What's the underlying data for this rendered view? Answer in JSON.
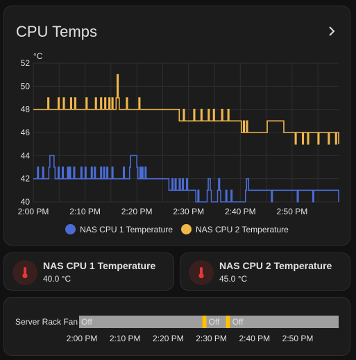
{
  "card": {
    "title": "CPU Temps",
    "unit": "°C"
  },
  "legend": [
    {
      "label": "NAS CPU 1 Temperature",
      "color": "#4a6cd4"
    },
    {
      "label": "NAS CPU 2 Temperature",
      "color": "#f0b74a"
    }
  ],
  "chart_data": {
    "type": "line",
    "xlabel": "",
    "ylabel": "°C",
    "ylim": [
      40,
      52
    ],
    "yticks": [
      40,
      42,
      44,
      46,
      48,
      50,
      52
    ],
    "xlim_minutes": [
      0,
      59
    ],
    "xticks": [
      {
        "t": 0,
        "label": "2:00 PM"
      },
      {
        "t": 10,
        "label": "2:10 PM"
      },
      {
        "t": 20,
        "label": "2:20 PM"
      },
      {
        "t": 30,
        "label": "2:30 PM"
      },
      {
        "t": 40,
        "label": "2:40 PM"
      },
      {
        "t": 50,
        "label": "2:50 PM"
      }
    ],
    "grid": true,
    "series": [
      {
        "name": "NAS CPU 1 Temperature",
        "color": "#4a6cd4",
        "x": [
          0,
          0.8,
          1,
          1.8,
          2,
          3,
          3.2,
          4,
          4.2,
          4.8,
          5,
          5.6,
          5.8,
          6.6,
          6.8,
          7,
          7.2,
          7.8,
          8,
          9.2,
          9.4,
          10,
          10.2,
          11.2,
          11.4,
          11.8,
          12,
          13,
          13.2,
          13.6,
          13.8,
          14.2,
          14.4,
          15.2,
          15.4,
          17.4,
          17.6,
          18.6,
          18.8,
          20,
          20.2,
          20.6,
          20.8,
          21,
          21.2,
          21.6,
          21.8,
          26,
          26.2,
          26.8,
          27,
          27.4,
          27.6,
          28.2,
          28.4,
          28.8,
          29,
          29.6,
          29.8,
          31.2,
          31.4,
          31.8,
          32,
          33.6,
          33.8,
          34.2,
          34.4,
          35.6,
          35.8,
          36,
          36.2,
          37.2,
          37.4,
          38.2,
          38.4,
          41,
          41.2,
          41.6,
          41.8,
          46,
          46.2,
          51,
          51.2,
          54,
          54.2,
          59
        ],
        "y": [
          42,
          43,
          42,
          43,
          42,
          43,
          44,
          43,
          42,
          43,
          42,
          43,
          42,
          43,
          42,
          43,
          42,
          43,
          42,
          43,
          42,
          43,
          42,
          43,
          42,
          43,
          42,
          43,
          42,
          43,
          42,
          43,
          42,
          43,
          42,
          43,
          42,
          43,
          44,
          43,
          42,
          43,
          42,
          43,
          42,
          43,
          42,
          42,
          41,
          42,
          41,
          42,
          41,
          42,
          41,
          42,
          41,
          42,
          41,
          41,
          40,
          41,
          40,
          41,
          42,
          41,
          40,
          41,
          42,
          41,
          40,
          41,
          40,
          41,
          40,
          41,
          42,
          41,
          41,
          40,
          41,
          40,
          41,
          40,
          41,
          40
        ]
      },
      {
        "name": "NAS CPU 2 Temperature",
        "color": "#f0b74a",
        "x": [
          0,
          2.8,
          3,
          4.8,
          5,
          5.8,
          6,
          7.2,
          7.4,
          8,
          8.2,
          10.2,
          10.4,
          12,
          12.2,
          13,
          13.2,
          13.8,
          14,
          14.6,
          14.8,
          15.2,
          15.4,
          16,
          16.2,
          16.4,
          16.6,
          18,
          18.2,
          20.4,
          20.6,
          28,
          28.2,
          29,
          29.2,
          31,
          31.2,
          32.4,
          32.6,
          33.8,
          34,
          34.8,
          35,
          36.4,
          36.6,
          37.6,
          37.8,
          40,
          40.2,
          40.6,
          40.8,
          41.2,
          41.4,
          45,
          45.2,
          48.4,
          48.6,
          50.6,
          50.8,
          52,
          52.2,
          53,
          53.2,
          55,
          55.2,
          57,
          57.2,
          58.4,
          58.6,
          59
        ],
        "y": [
          48,
          49,
          48,
          49,
          48,
          49,
          48,
          49,
          48,
          49,
          48,
          49,
          48,
          49,
          48,
          49,
          48,
          49,
          48,
          49,
          48,
          49,
          48,
          49,
          51,
          49,
          48,
          49,
          48,
          49,
          48,
          48,
          47,
          48,
          47,
          48,
          47,
          48,
          47,
          48,
          47,
          48,
          47,
          48,
          47,
          48,
          47,
          47,
          46,
          47,
          46,
          47,
          46,
          46,
          47,
          46,
          46,
          45,
          46,
          45,
          46,
          45,
          46,
          45,
          46,
          45,
          46,
          45,
          46,
          45
        ]
      }
    ]
  },
  "tiles": [
    {
      "name": "NAS CPU 1 Temperature",
      "state": "40.0 °C"
    },
    {
      "name": "NAS CPU 2 Temperature",
      "state": "45.0 °C"
    }
  ],
  "timeline": {
    "label": "Server Rack Fan",
    "segments": [
      {
        "start": 0,
        "end": 28.5,
        "state": "Off",
        "color": "#9e9e9e"
      },
      {
        "start": 28.5,
        "end": 29.5,
        "state": "On",
        "color": "#ffc107"
      },
      {
        "start": 29.5,
        "end": 34,
        "state": "Off",
        "color": "#9e9e9e"
      },
      {
        "start": 34,
        "end": 35,
        "state": "On",
        "color": "#ffc107"
      },
      {
        "start": 35,
        "end": 120,
        "state": "Off",
        "color": "#9e9e9e"
      }
    ],
    "range_minutes": [
      0,
      120
    ],
    "xticks": [
      {
        "t": 0,
        "label": "2:00 PM"
      },
      {
        "t": 10,
        "label": "2:10 PM"
      },
      {
        "t": 20,
        "label": "2:20 PM"
      },
      {
        "t": 30,
        "label": "2:30 PM"
      },
      {
        "t": 40,
        "label": "2:40 PM"
      },
      {
        "t": 50,
        "label": "2:50 PM"
      }
    ]
  }
}
